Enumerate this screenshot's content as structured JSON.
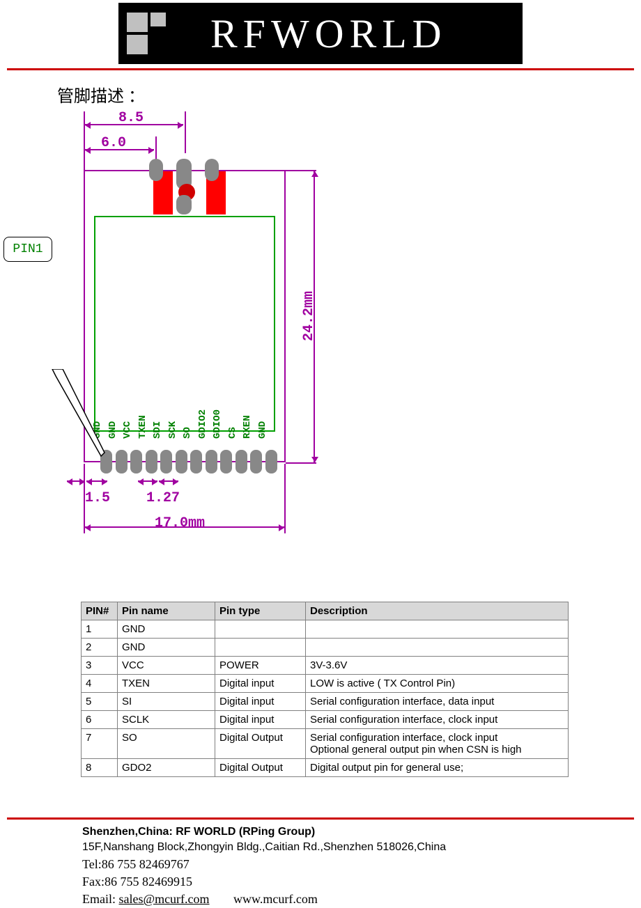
{
  "header": {
    "brand": "RFWORLD",
    "banner_bg": "#000000",
    "logo_square_color": "#c0c0c0",
    "text_color": "#ffffff"
  },
  "rule_color": "#cc0000",
  "section_title": "管脚描述 ：",
  "callout": {
    "label": "PIN1"
  },
  "diagram": {
    "outline_color": "#a000a0",
    "inner_color": "#00a000",
    "pad_color": "#888888",
    "antenna_color": "#ff0000",
    "dims": {
      "top_wide": "8.5",
      "top_narrow": "6.0",
      "height": "24.2mm",
      "width": "17.0mm",
      "edge": "1.5",
      "pitch": "1.27"
    },
    "pins": [
      "GND",
      "GND",
      "VCC",
      "TXEN",
      "SDI",
      "SCK",
      "SO",
      "GDIO2",
      "GDIO0",
      "CS",
      "RXEN",
      "GND"
    ]
  },
  "table": {
    "headers": [
      "PIN#",
      "Pin name",
      "Pin type",
      "Description"
    ],
    "rows": [
      [
        "1",
        "GND",
        "",
        ""
      ],
      [
        "2",
        "GND",
        "",
        ""
      ],
      [
        "3",
        "VCC",
        "POWER",
        "3V-3.6V"
      ],
      [
        "4",
        "TXEN",
        "Digital input",
        "LOW is active ( TX Control Pin)"
      ],
      [
        "5",
        "SI",
        "Digital input",
        "Serial configuration interface, data input"
      ],
      [
        "6",
        "SCLK",
        "Digital input",
        "Serial configuration interface, clock input"
      ],
      [
        "7",
        "SO",
        "Digital Output",
        "Serial configuration interface, clock input\nOptional general output pin when CSN is high"
      ],
      [
        "8",
        "GDO2",
        "Digital Output",
        "Digital output pin for general use;"
      ]
    ]
  },
  "footer": {
    "company": "Shenzhen,China: RF WORLD (RPing Group)",
    "address": "15F,Nanshang Block,Zhongyin Bldg.,Caitian Rd.,Shenzhen 518026,China",
    "tel": "Tel:86 755    82469767",
    "fax": "Fax:86 755 82469915",
    "email_label": "Email: ",
    "email": "sales@mcurf.com",
    "web": "www.mcurf.com"
  }
}
